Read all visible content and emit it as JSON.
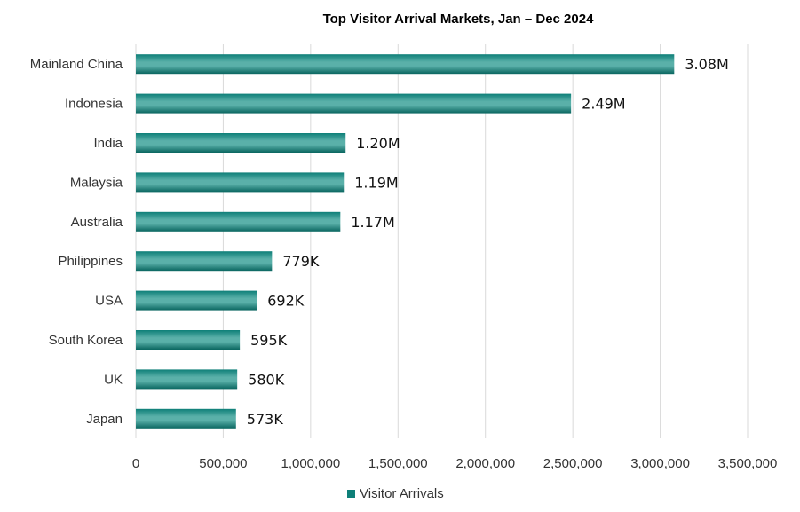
{
  "chart_data": {
    "type": "bar",
    "orientation": "horizontal",
    "title": "Top Visitor Arrival Markets, Jan – Dec 2024",
    "categories": [
      "Mainland China",
      "Indonesia",
      "India",
      "Malaysia",
      "Australia",
      "Philippines",
      "USA",
      "South Korea",
      "UK",
      "Japan"
    ],
    "series": [
      {
        "name": "Visitor Arrivals",
        "values": [
          3080000,
          2490000,
          1200000,
          1190000,
          1170000,
          779000,
          692000,
          595000,
          580000,
          573000
        ],
        "labels": [
          "3.08M",
          "2.49M",
          "1.20M",
          "1.19M",
          "1.17M",
          "779K",
          "692K",
          "595K",
          "580K",
          "573K"
        ]
      }
    ],
    "xlim": [
      0,
      3500000
    ],
    "xticks": [
      "0",
      "500,000",
      "1,000,000",
      "1,500,000",
      "2,000,000",
      "2,500,000",
      "3,000,000",
      "3,500,000"
    ],
    "xtick_values": [
      0,
      500000,
      1000000,
      1500000,
      2000000,
      2500000,
      3000000,
      3500000
    ],
    "grid": "vertical",
    "legend": "bottom-center",
    "colors": {
      "bar": "#0e7f78",
      "bar_highlight": "#5ab0a9",
      "bar_shadow": "#0a6660"
    }
  }
}
